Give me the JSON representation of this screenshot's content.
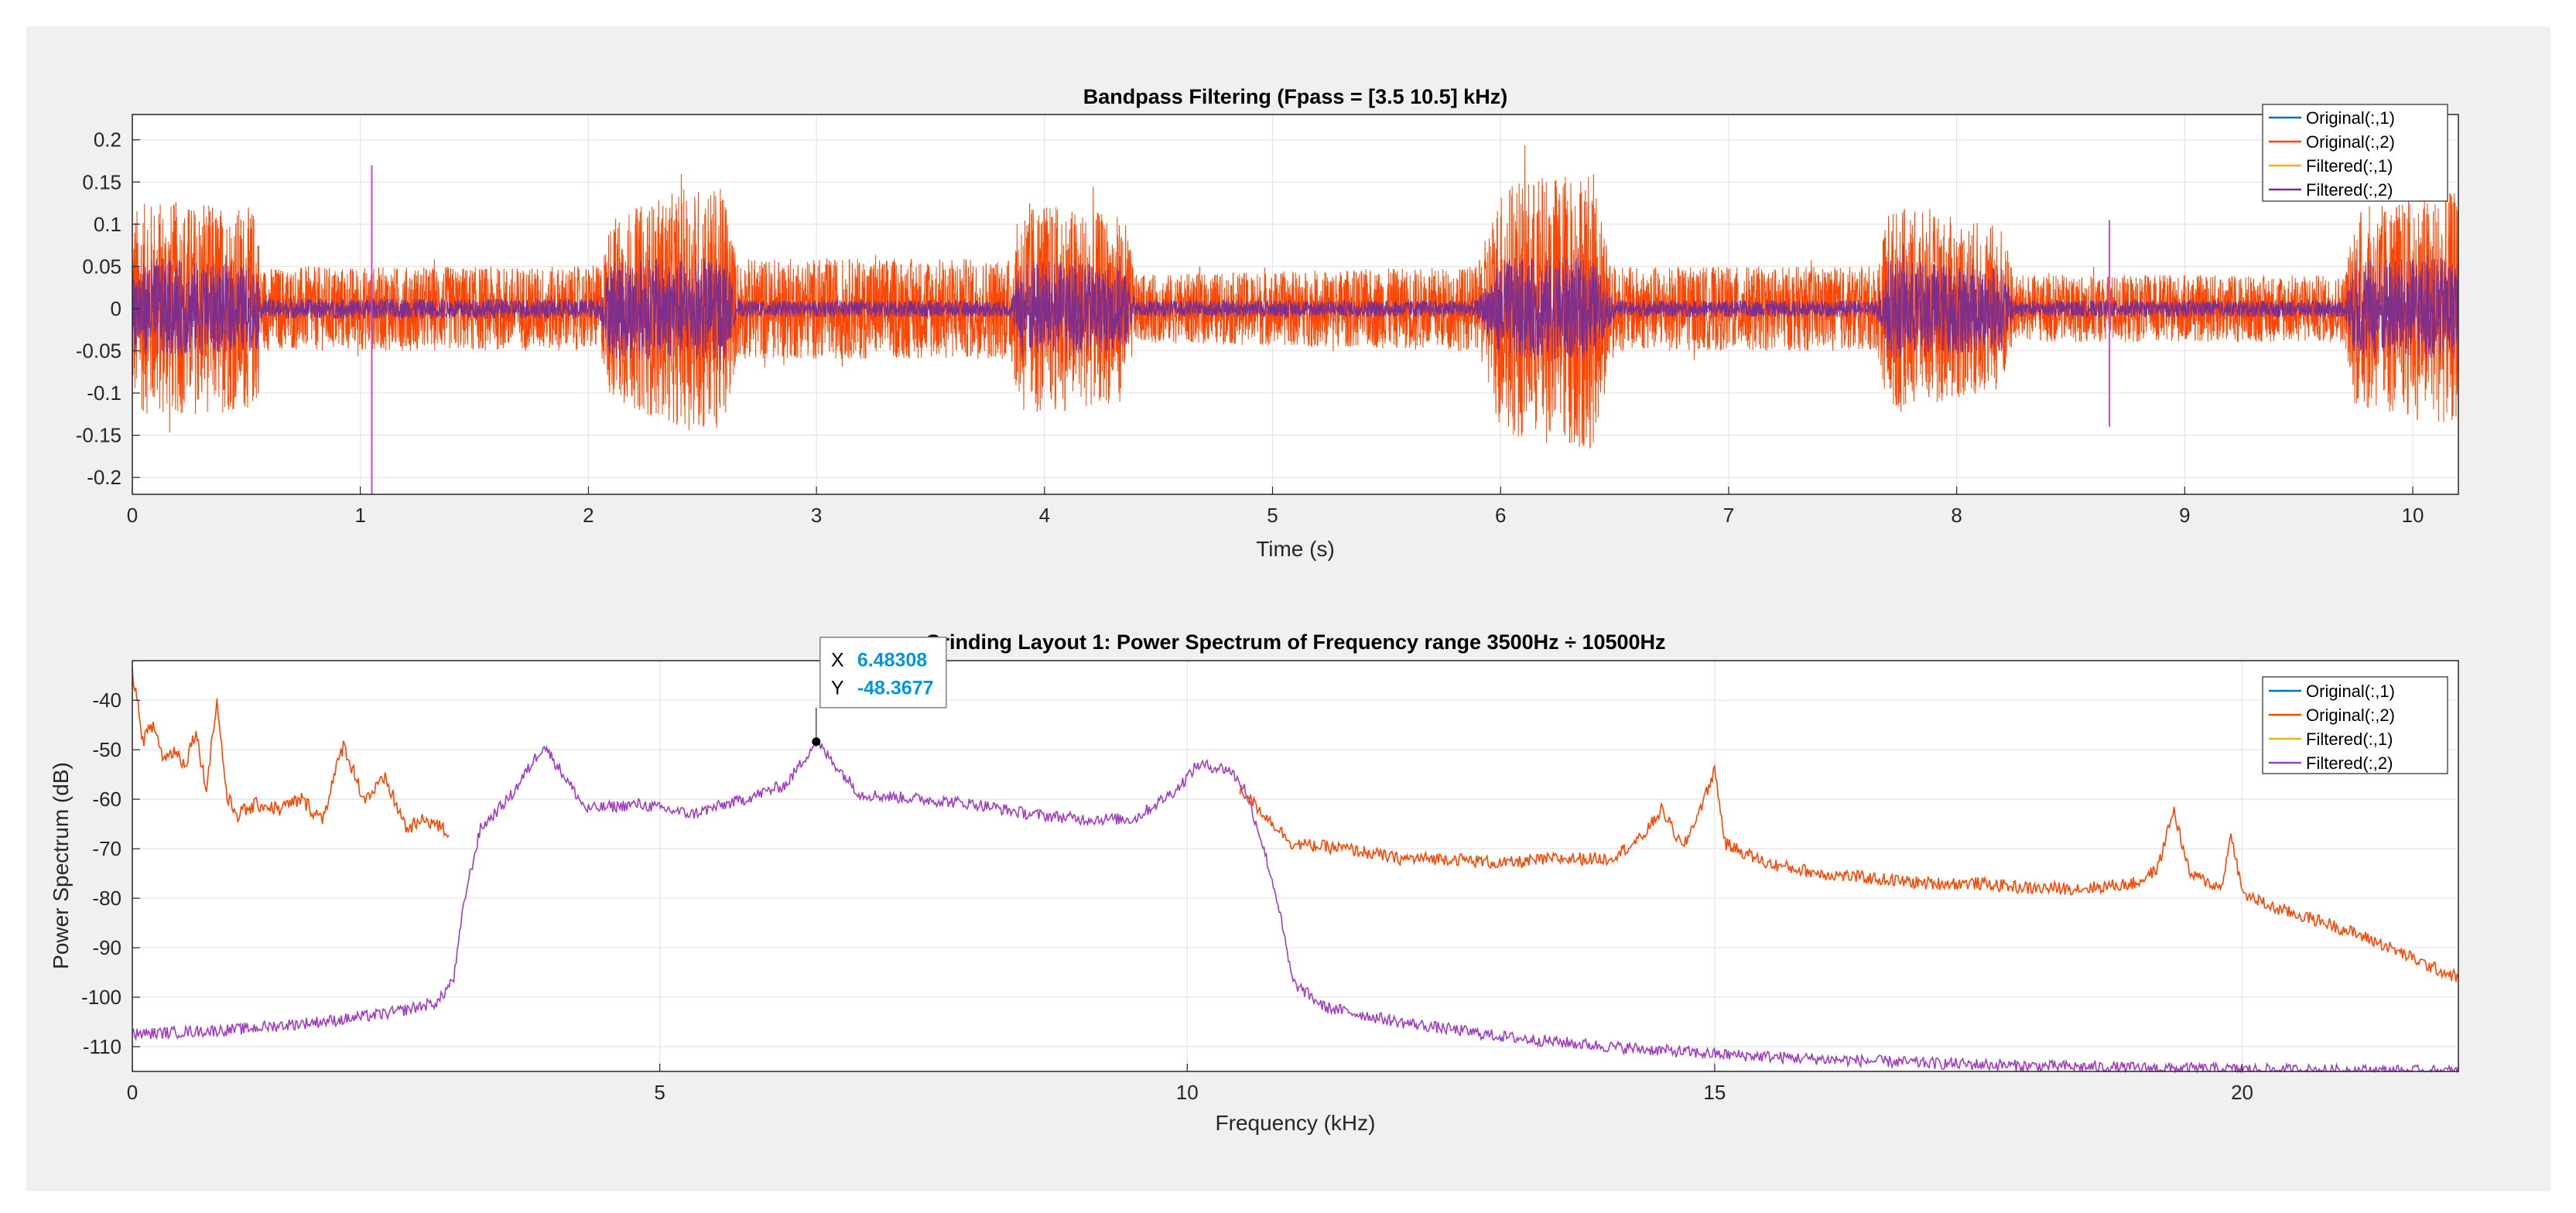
{
  "chart_data": [
    {
      "type": "line",
      "title": "Bandpass Filtering  (Fpass = [3.5 10.5] kHz)",
      "xlabel": "Time (s)",
      "ylabel": "",
      "xlim": [
        0,
        10.2
      ],
      "ylim": [
        -0.22,
        0.23
      ],
      "xticks": [
        0,
        1,
        2,
        3,
        4,
        5,
        6,
        7,
        8,
        9,
        10
      ],
      "yticks": [
        -0.2,
        -0.15,
        -0.1,
        -0.05,
        0,
        0.05,
        0.1,
        0.15,
        0.2
      ],
      "ytick_labels": [
        "-0.2",
        "-0.15",
        "-0.1",
        "-0.05",
        "0",
        "0.05",
        "0.1",
        "0.15",
        "0.2"
      ],
      "grid": true,
      "legend_position": "top-right",
      "series": [
        {
          "name": "Original(:,1)",
          "color": "#0072BD"
        },
        {
          "name": "Original(:,2)",
          "color": "#FF4500",
          "envelope": {
            "t": [
              0,
              0.1,
              0.55,
              0.56,
              2.05,
              2.1,
              2.5,
              2.6,
              2.65,
              3.85,
              3.9,
              4.35,
              4.4,
              5.9,
              6.0,
              6.4,
              6.5,
              7.65,
              7.7,
              8.2,
              8.25,
              9.7,
              9.75,
              10.2
            ],
            "amplitude": [
              0.12,
              0.13,
              0.12,
              0.05,
              0.05,
              0.11,
              0.15,
              0.14,
              0.06,
              0.06,
              0.13,
              0.11,
              0.04,
              0.05,
              0.15,
              0.17,
              0.05,
              0.05,
              0.12,
              0.1,
              0.04,
              0.04,
              0.12,
              0.14
            ]
          }
        },
        {
          "name": "Filtered(:,1)",
          "color": "#EDB120"
        },
        {
          "name": "Filtered(:,2)",
          "color": "#7E2F8E",
          "envelope": {
            "t": [
              0,
              0.1,
              0.55,
              0.56,
              2.05,
              2.1,
              2.6,
              2.65,
              3.85,
              3.9,
              4.35,
              4.4,
              5.9,
              6.0,
              6.4,
              6.5,
              7.65,
              7.7,
              8.2,
              8.25,
              9.7,
              9.75,
              10.2
            ],
            "amplitude": [
              0.05,
              0.06,
              0.05,
              0.012,
              0.012,
              0.06,
              0.06,
              0.01,
              0.01,
              0.06,
              0.05,
              0.01,
              0.01,
              0.06,
              0.06,
              0.01,
              0.01,
              0.06,
              0.05,
              0.01,
              0.01,
              0.06,
              0.06
            ]
          }
        }
      ],
      "spikes": [
        {
          "t": 1.05,
          "ymax": 0.17,
          "ymin": -0.22
        },
        {
          "t": 8.67,
          "ymax": 0.105,
          "ymin": -0.14
        }
      ]
    },
    {
      "type": "line",
      "title": "Grinding  Layout  1:  Power  Spectrum  of  Frequency  range  3500Hz  ÷  10500Hz",
      "xlabel": "Frequency (kHz)",
      "ylabel": "Power Spectrum (dB)",
      "xlim": [
        0,
        22.05
      ],
      "ylim": [
        -115,
        -32
      ],
      "xticks": [
        0,
        5,
        10,
        15,
        20
      ],
      "yticks": [
        -110,
        -100,
        -90,
        -80,
        -70,
        -60,
        -50,
        -40
      ],
      "grid": true,
      "legend_position": "top-right",
      "series": [
        {
          "name": "Original(:,1)",
          "color": "#0072BD"
        },
        {
          "name": "Original(:,2)",
          "color": "#FF4500",
          "x": [
            0,
            0.1,
            0.2,
            0.3,
            0.4,
            0.5,
            0.6,
            0.7,
            0.8,
            0.9,
            1.0,
            1.2,
            1.4,
            1.6,
            1.8,
            2.0,
            2.2,
            2.4,
            2.6,
            2.8,
            3.0
          ],
          "y": [
            -34,
            -48,
            -45,
            -52,
            -50,
            -53,
            -46,
            -58,
            -40,
            -60,
            -63,
            -61,
            -62,
            -60,
            -64,
            -49,
            -60,
            -56,
            -66,
            -64,
            -67
          ]
        },
        {
          "name": "Filtered(:,1)",
          "color": "#EDB120"
        },
        {
          "name": "Filtered(:,2)",
          "color": "#A03DC2",
          "x": [
            0,
            0.5,
            1,
            1.5,
            2,
            2.5,
            2.9,
            3.05,
            3.15,
            3.3,
            3.6,
            3.9,
            4.3,
            4.8,
            5.3,
            5.8,
            6.2,
            6.48,
            6.9,
            7.5,
            8.0,
            8.5,
            9.0,
            9.5,
            9.9,
            10.1,
            10.4,
            10.55,
            10.7,
            10.85,
            11.0,
            11.3,
            12,
            13,
            14,
            15,
            16,
            17,
            18,
            19,
            20,
            21,
            22.05
          ],
          "y": [
            -107.5,
            -107,
            -106.5,
            -105.5,
            -104.5,
            -103,
            -101,
            -96,
            -80,
            -66,
            -59,
            -49,
            -62,
            -61,
            -63,
            -60,
            -57,
            -48.37,
            -59,
            -60,
            -61,
            -63,
            -64,
            -64,
            -58,
            -53,
            -54,
            -58,
            -68,
            -80,
            -97,
            -102,
            -105,
            -108,
            -110,
            -111.5,
            -112.5,
            -113.3,
            -113.9,
            -114.3,
            -114.6,
            -114.8,
            -115
          ]
        },
        {
          "name": "Original(:,2) tail",
          "color": "#FF4500",
          "x": [
            10.5,
            11,
            11.5,
            12,
            12.5,
            13,
            13.5,
            14,
            14.3,
            14.5,
            14.7,
            14.9,
            15.0,
            15.1,
            15.5,
            16,
            16.5,
            17,
            17.5,
            18,
            18.5,
            19,
            19.2,
            19.35,
            19.5,
            19.8,
            19.9,
            20.0,
            20.3,
            20.8,
            21.3,
            21.8,
            22.05
          ],
          "y": [
            -58,
            -69,
            -70,
            -72,
            -72,
            -73,
            -72,
            -72,
            -68,
            -62,
            -70,
            -60,
            -54,
            -69,
            -73,
            -75,
            -76,
            -77,
            -77,
            -78,
            -78,
            -77,
            -74,
            -62,
            -75,
            -78,
            -67,
            -79,
            -82,
            -85,
            -89,
            -94,
            -96
          ]
        }
      ]
    }
  ],
  "datatip": {
    "x_label": "X",
    "x_value": "6.48308",
    "y_label": "Y",
    "y_value": "-48.3677",
    "x": 6.48308,
    "y": -48.3677
  }
}
